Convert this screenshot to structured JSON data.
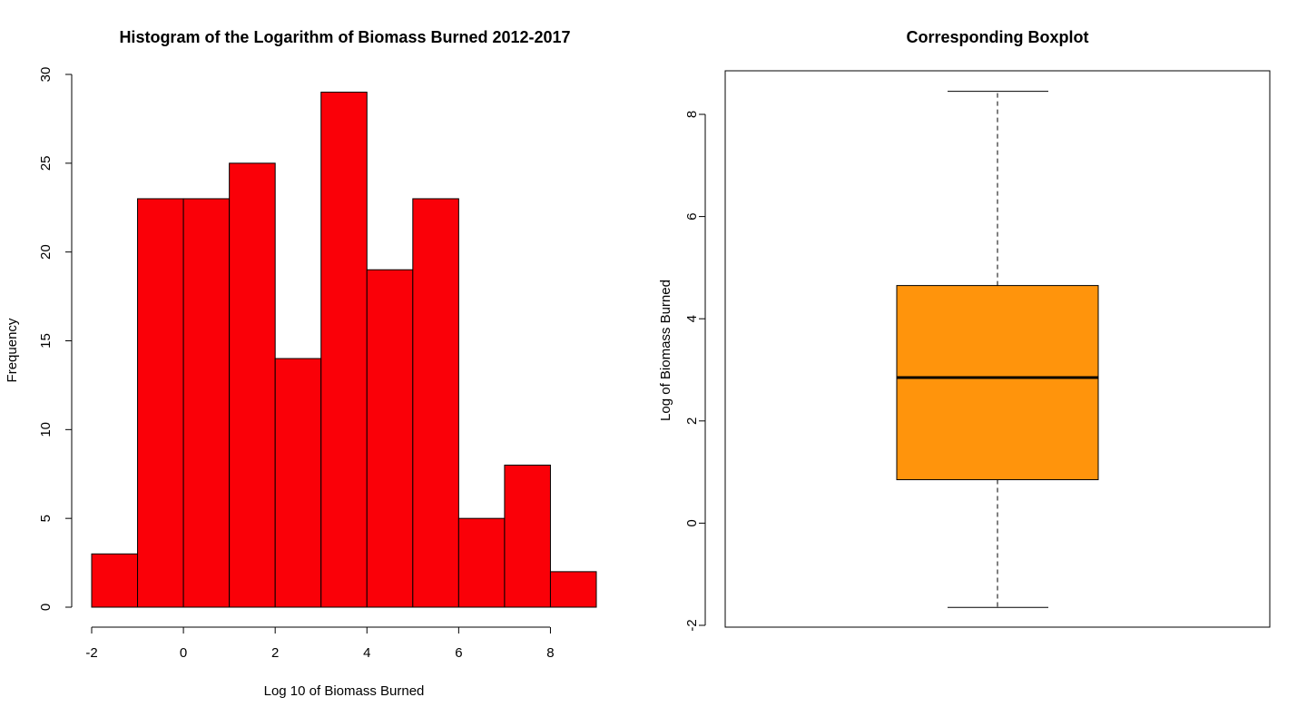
{
  "chart_data": [
    {
      "type": "bar",
      "subtype": "histogram",
      "title": "Histogram of the Logarithm of Biomass Burned 2012-2017",
      "xlabel": "Log 10 of Biomass Burned",
      "ylabel": "Frequency",
      "bin_edges": [
        -2,
        -1,
        0,
        1,
        2,
        3,
        4,
        5,
        6,
        7,
        8,
        9
      ],
      "values": [
        3,
        23,
        23,
        25,
        14,
        29,
        19,
        23,
        5,
        8,
        2
      ],
      "xlim": [
        -2,
        9
      ],
      "ylim": [
        0,
        30
      ],
      "xticks": [
        -2,
        0,
        2,
        4,
        6,
        8
      ],
      "yticks": [
        0,
        5,
        10,
        15,
        20,
        25,
        30
      ],
      "xtick_labels": [
        "-2",
        "0",
        "2",
        "4",
        "6",
        "8"
      ],
      "ytick_labels": [
        "0",
        "5",
        "10",
        "15",
        "20",
        "25",
        "30"
      ],
      "bar_color": "#fa0008",
      "grid": false
    },
    {
      "type": "boxplot",
      "title": "Corresponding Boxplot",
      "xlabel": "",
      "ylabel": "Log of Biomass Burned",
      "min": -1.65,
      "q1": 0.85,
      "median": 2.85,
      "q3": 4.65,
      "max": 8.45,
      "ylim": [
        -2,
        8.8
      ],
      "yticks": [
        -2,
        0,
        2,
        4,
        6,
        8
      ],
      "ytick_labels": [
        "-2",
        "0",
        "2",
        "4",
        "6",
        "8"
      ],
      "box_color": "#ff940c",
      "grid": false
    }
  ]
}
